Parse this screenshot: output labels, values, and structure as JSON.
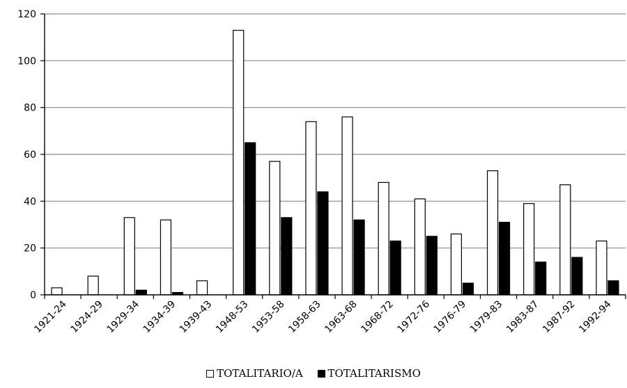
{
  "chart_data": {
    "type": "bar",
    "title": "",
    "xlabel": "",
    "ylabel": "",
    "ylim": [
      0,
      120
    ],
    "yticks": [
      0,
      20,
      40,
      60,
      80,
      100,
      120
    ],
    "grid": true,
    "legend_position": "bottom",
    "categories": [
      "1921-24",
      "1924-29",
      "1929-34",
      "1934-39",
      "1939-43",
      "1948-53",
      "1953-58",
      "1958-63",
      "1963-68",
      "1968-72",
      "1972-76",
      "1976-79",
      "1979-83",
      "1983-87",
      "1987-92",
      "1992-94"
    ],
    "series": [
      {
        "name": "TOTALITARIO/A",
        "color": "#ffffff",
        "values": [
          3,
          8,
          33,
          32,
          6,
          113,
          57,
          74,
          76,
          48,
          41,
          26,
          53,
          39,
          47,
          23
        ]
      },
      {
        "name": "TOTALITARISMO",
        "color": "#000000",
        "values": [
          0,
          0,
          2,
          1,
          0,
          65,
          33,
          44,
          32,
          23,
          25,
          5,
          31,
          14,
          16,
          6
        ]
      }
    ]
  }
}
